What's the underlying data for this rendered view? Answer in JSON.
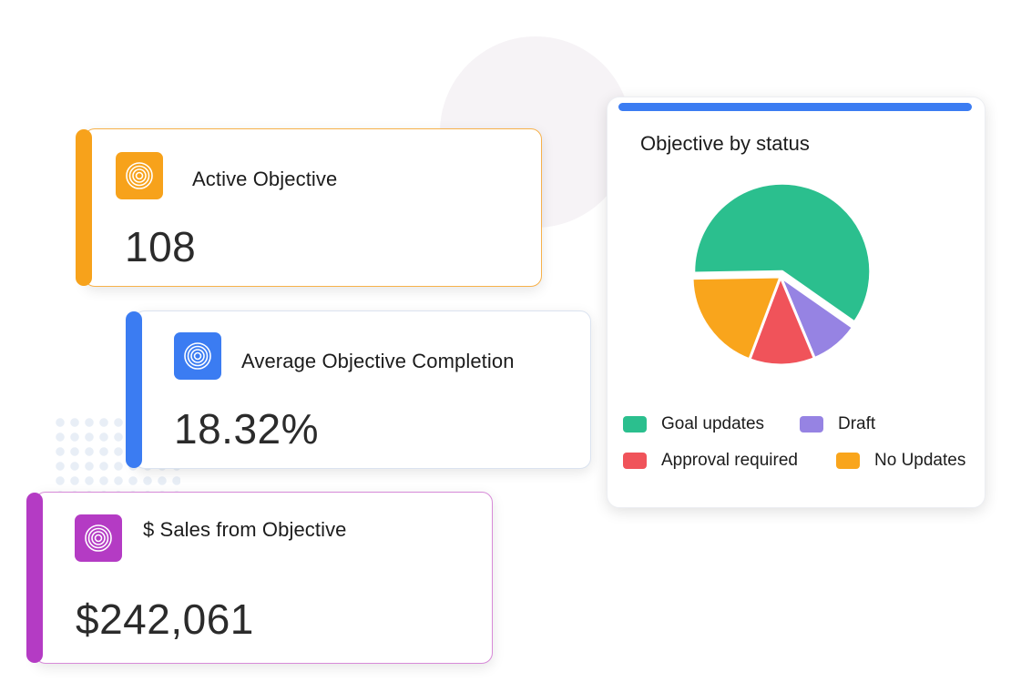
{
  "cards": [
    {
      "label": "Active Objective",
      "value": "108",
      "icon": "target-rings-icon",
      "color": "#f7a21b"
    },
    {
      "label": "Average Objective Completion",
      "value": "18.32%",
      "icon": "target-rings-icon",
      "color": "#3b7cf2"
    },
    {
      "label": "$ Sales from Objective",
      "value": "$242,061",
      "icon": "target-rings-icon",
      "color": "#b43bc4"
    }
  ],
  "panel": {
    "title": "Objective by status",
    "accent_color": "#3b7cf2"
  },
  "chart_data": {
    "type": "pie",
    "title": "Objective by status",
    "legend_placement": "bottom",
    "series": [
      {
        "name": "Goal updates",
        "value": 60,
        "color": "#2bbf8e"
      },
      {
        "name": "Draft",
        "value": 9,
        "color": "#9683e3"
      },
      {
        "name": "Approval required",
        "value": 12,
        "color": "#f0535a"
      },
      {
        "name": "No Updates",
        "value": 19,
        "color": "#f9a51c"
      }
    ],
    "exploded": "Goal updates"
  }
}
